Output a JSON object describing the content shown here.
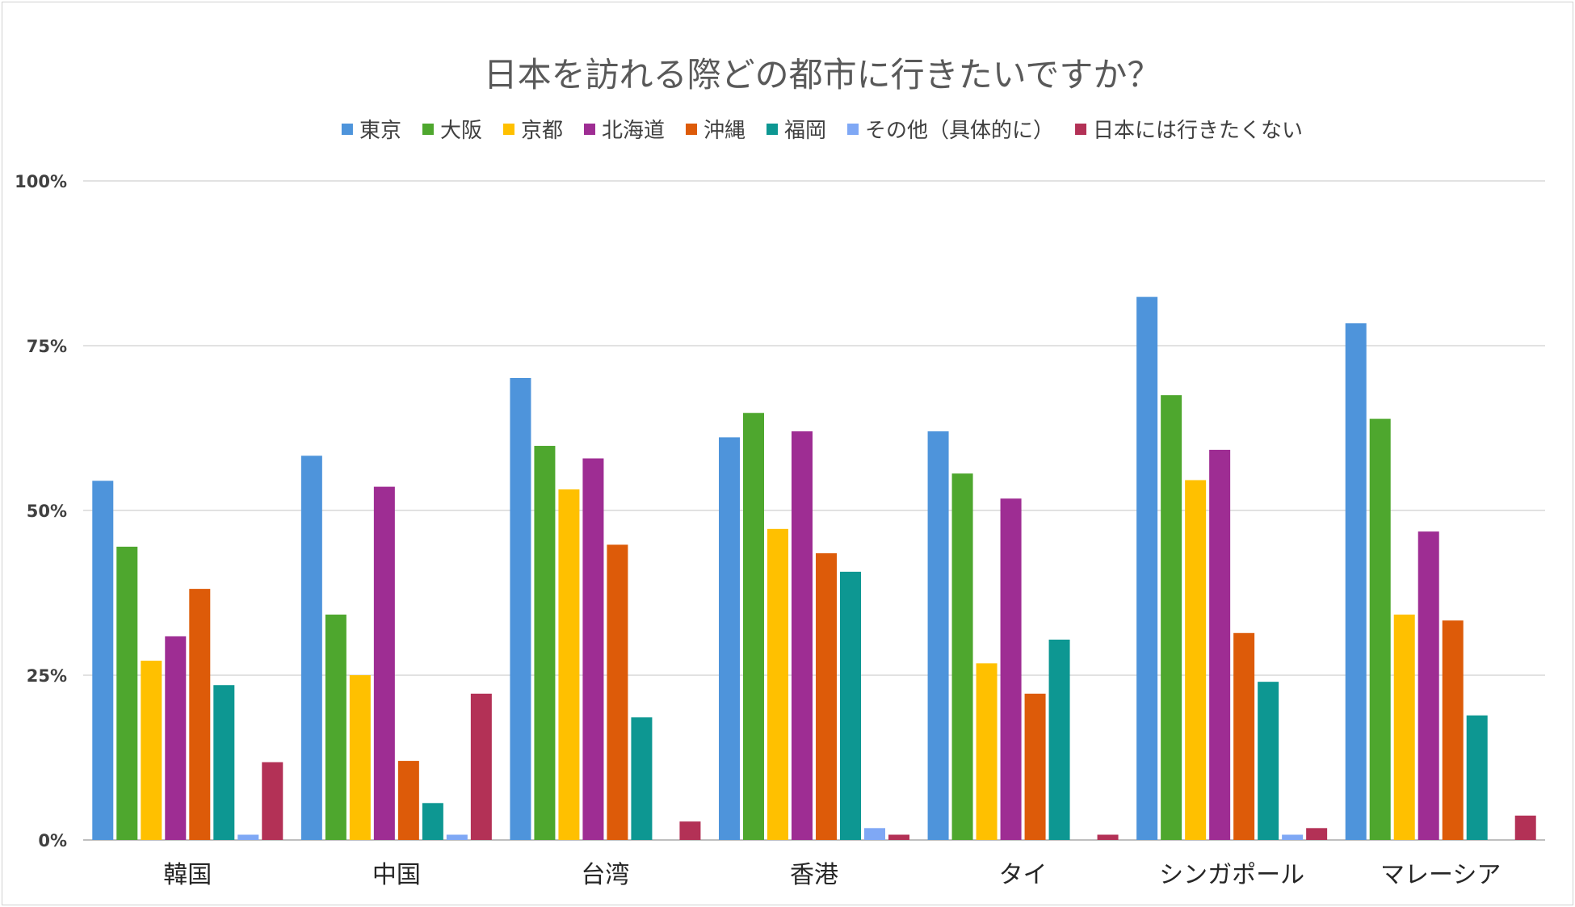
{
  "chart_data": {
    "type": "bar",
    "title": "日本を訪れる際どの都市に行きたいですか？",
    "categories": [
      "韓国",
      "中国",
      "台湾",
      "香港",
      "タイ",
      "シンガポール",
      "マレーシア"
    ],
    "y_ticks": [
      "0%",
      "25%",
      "50%",
      "75%",
      "100%"
    ],
    "ylim": [
      0,
      100
    ],
    "y_unit": "%",
    "grid": true,
    "legend_position": "top",
    "series": [
      {
        "name": "東京",
        "color": "#4E94DB",
        "values": [
          54.5,
          58.3,
          70.1,
          61.1,
          62.0,
          82.4,
          78.4
        ]
      },
      {
        "name": "大阪",
        "color": "#4EA72E",
        "values": [
          44.5,
          34.2,
          59.8,
          64.8,
          55.6,
          67.5,
          63.9
        ]
      },
      {
        "name": "京都",
        "color": "#FFC000",
        "values": [
          27.2,
          25.0,
          53.2,
          47.2,
          26.8,
          54.6,
          34.2
        ]
      },
      {
        "name": "北海道",
        "color": "#9E2D93",
        "values": [
          30.9,
          53.6,
          57.9,
          62.0,
          51.8,
          59.2,
          46.8
        ]
      },
      {
        "name": "沖縄",
        "color": "#DD5B09",
        "values": [
          38.1,
          12.0,
          44.8,
          43.5,
          22.2,
          31.4,
          33.3
        ]
      },
      {
        "name": "福岡",
        "color": "#0D9792",
        "values": [
          23.5,
          5.6,
          18.6,
          40.7,
          30.4,
          24.0,
          18.9
        ]
      },
      {
        "name": "その他（具体的に）",
        "color": "#7FA8F5",
        "values": [
          0.8,
          0.8,
          0.0,
          1.8,
          0.0,
          0.8,
          0.0
        ]
      },
      {
        "name": "日本には行きたくない",
        "color": "#B33156",
        "values": [
          11.8,
          22.2,
          2.8,
          0.8,
          0.8,
          1.8,
          3.7
        ]
      }
    ]
  }
}
